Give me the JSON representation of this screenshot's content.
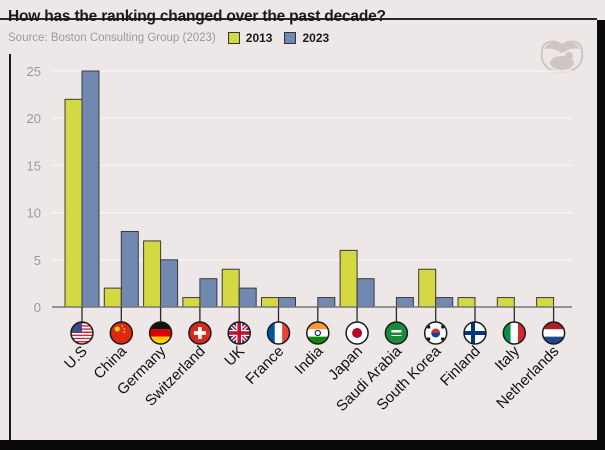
{
  "header": {
    "title": "How has the ranking changed over the past decade?",
    "source": "Source: Boston Consulting Group (2023)"
  },
  "logo": {
    "icon": "brain-hippo-logo-icon"
  },
  "colors": {
    "series_2013": "#d4d843",
    "series_2023": "#7189b1",
    "background": "#ede8e7",
    "gridline": "#f8f5f5"
  },
  "chart_data": {
    "type": "bar",
    "title": "How has the ranking changed over the past decade?",
    "subtitle": "Source: Boston Consulting Group (2023)",
    "xlabel": "",
    "ylabel": "",
    "ylim": [
      0,
      25
    ],
    "yticks": [
      "0",
      "5",
      "10",
      "15",
      "20",
      "25"
    ],
    "grid": true,
    "legend_position": "top-left",
    "categories": [
      "U.S",
      "China",
      "Germany",
      "Switzerland",
      "UK",
      "France",
      "India",
      "Japan",
      "Saudi Arabia",
      "South Korea",
      "Finland",
      "Italy",
      "Netherlands"
    ],
    "flags": [
      "us-flag-icon",
      "china-flag-icon",
      "germany-flag-icon",
      "switzerland-flag-icon",
      "uk-flag-icon",
      "france-flag-icon",
      "india-flag-icon",
      "japan-flag-icon",
      "saudi-arabia-flag-icon",
      "south-korea-flag-icon",
      "finland-flag-icon",
      "italy-flag-icon",
      "netherlands-flag-icon"
    ],
    "series": [
      {
        "name": "2013",
        "color": "#d4d843",
        "values": [
          22,
          2,
          7,
          1,
          4,
          1,
          0,
          6,
          0,
          4,
          1,
          1,
          1
        ]
      },
      {
        "name": "2023",
        "color": "#7189b1",
        "values": [
          25,
          8,
          5,
          3,
          2,
          1,
          1,
          3,
          1,
          1,
          0,
          0,
          0
        ]
      }
    ]
  }
}
